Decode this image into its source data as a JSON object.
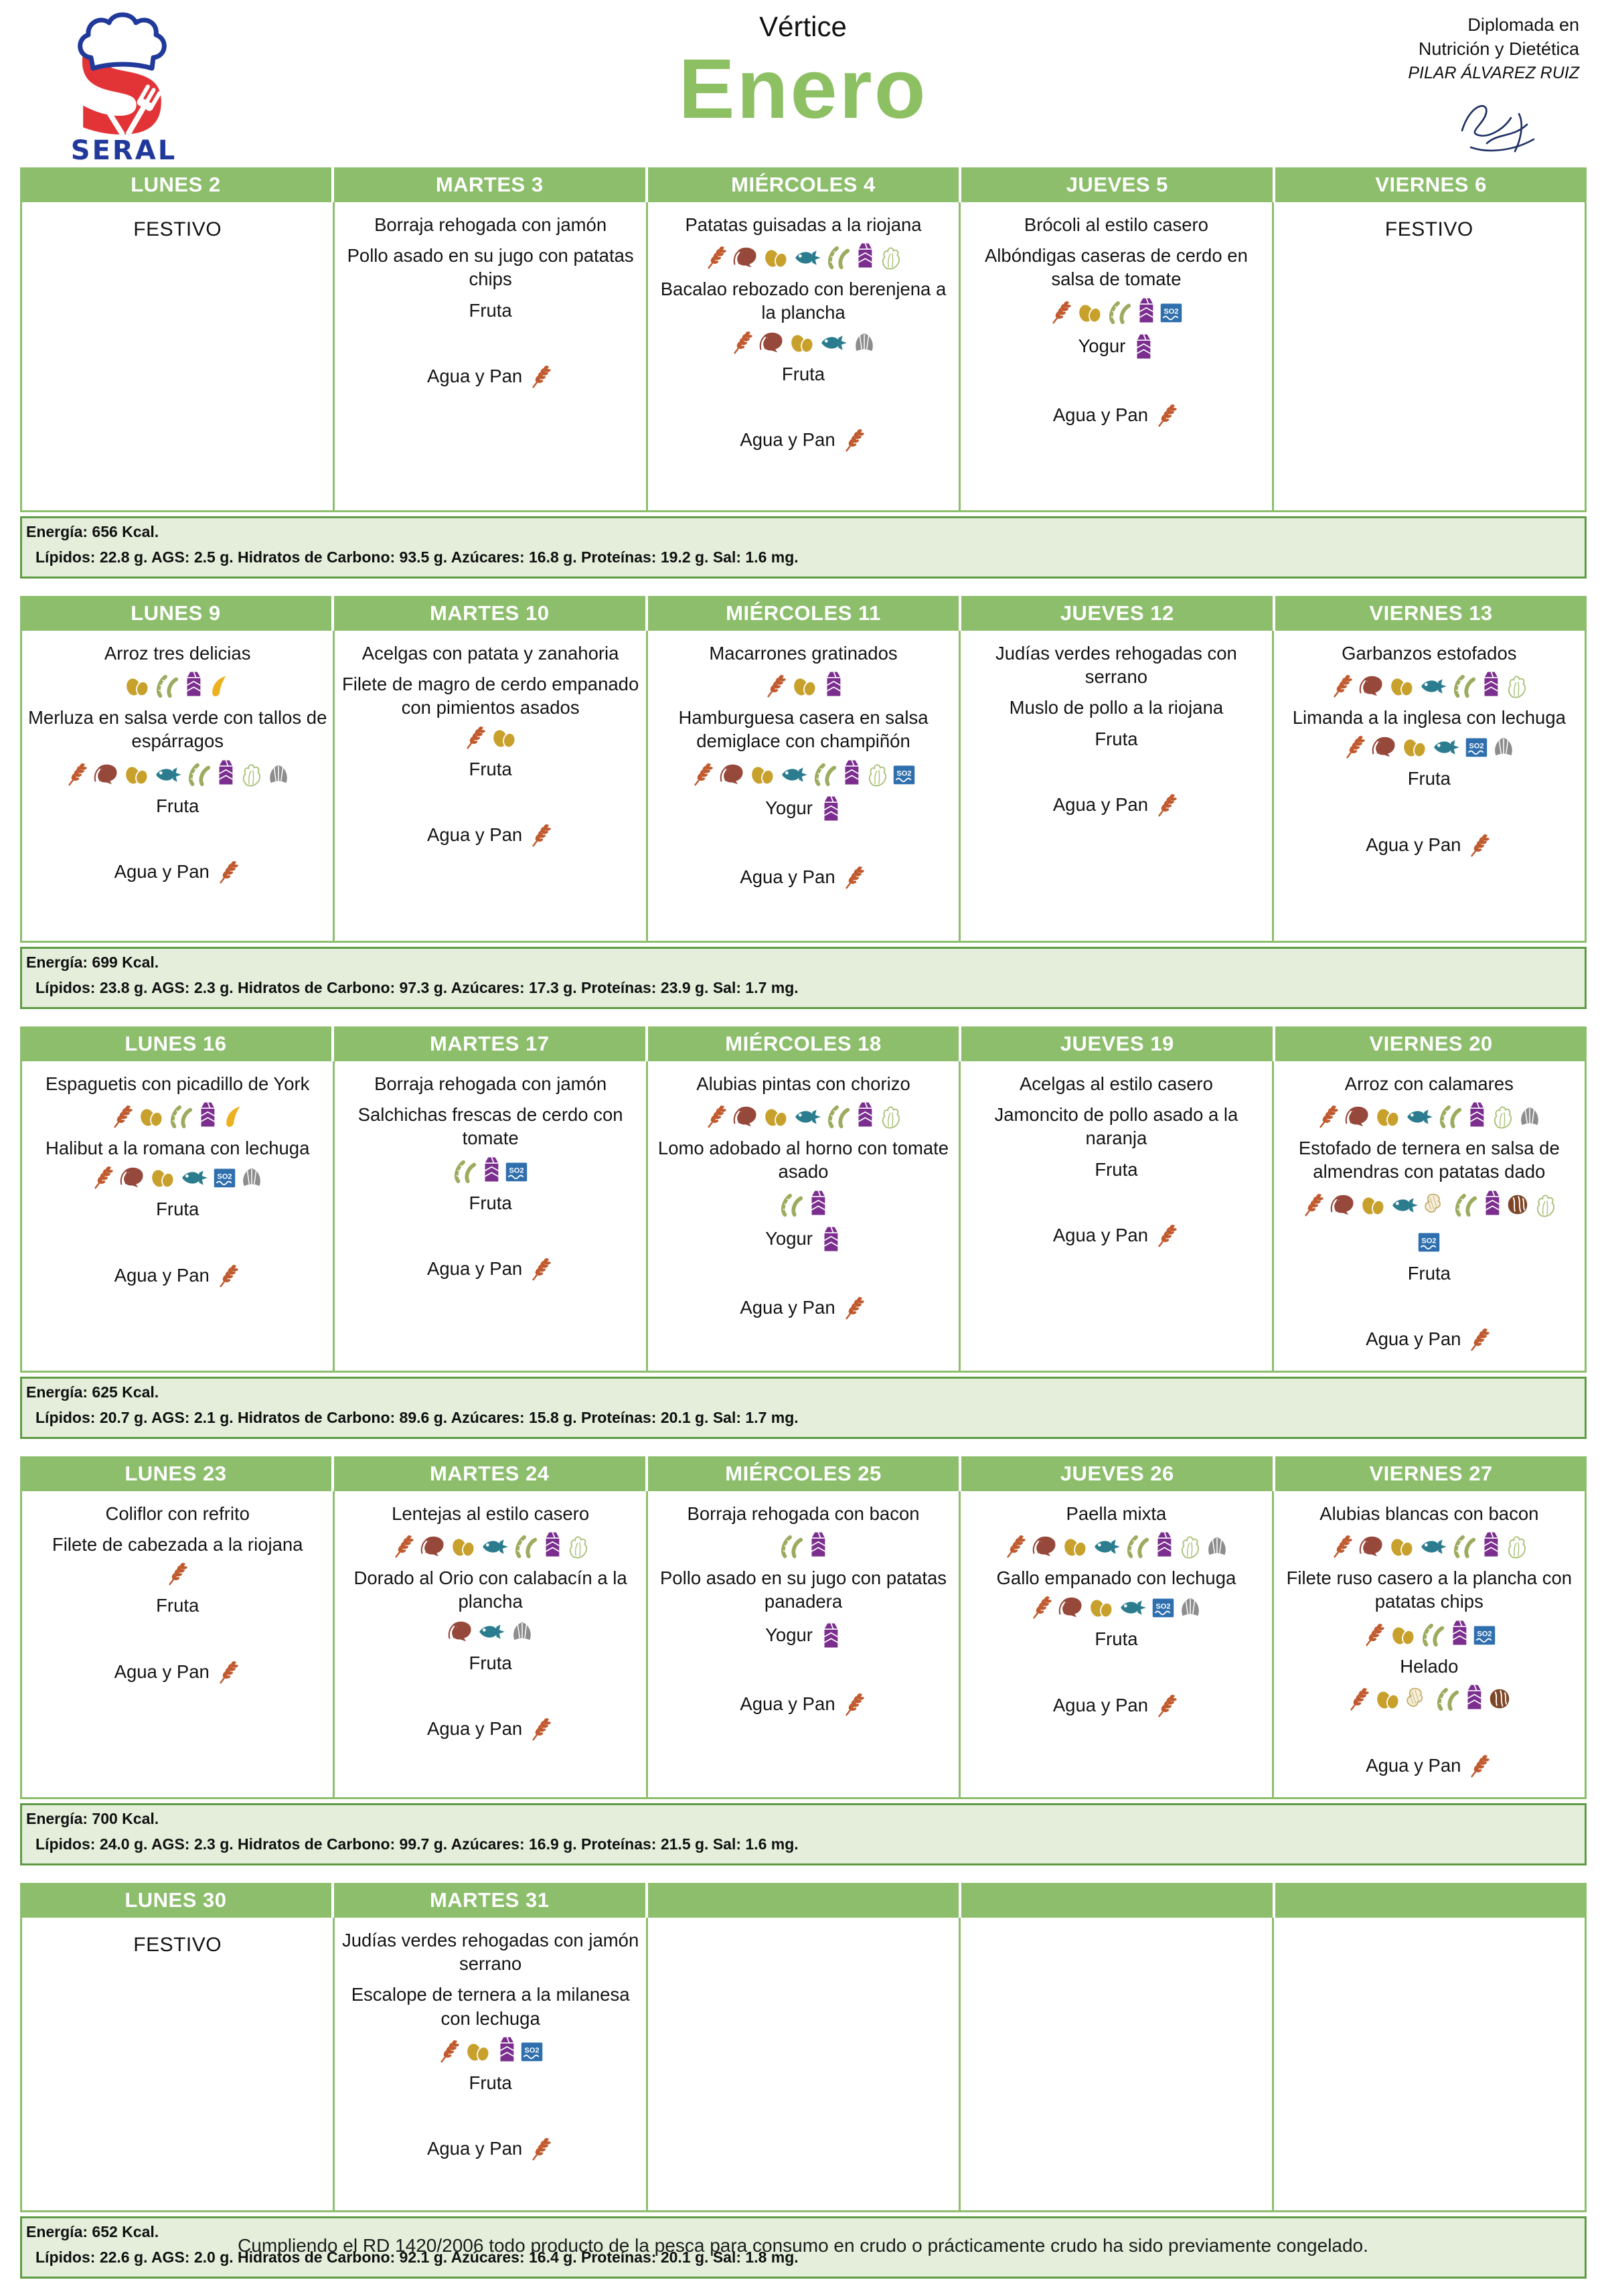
{
  "page": {
    "title_top": "Vértice",
    "month": "Enero",
    "brand": "SERAL",
    "brand_initial": "S",
    "credential_line1": "Diplomada en",
    "credential_line2": "Nutrición y Dietética",
    "credential_line3": "PILAR ÁLVAREZ RUIZ",
    "footer_note": "Cumpliendo el RD 1420/2006 todo producto de la pesca para consumo en crudo o prácticamente crudo ha sido previamente congelado."
  },
  "colors": {
    "header_green": "#8CBE6C",
    "cell_border_green": "#8CBE6C",
    "nutrition_bg": "#E4EEDB",
    "nutrition_border": "#5F9B45",
    "month_green": "#8CC063",
    "brand_red": "#E23336",
    "brand_blue": "#20399A",
    "text": "#1D1D1B"
  },
  "allergen_colors": {
    "gluten": "#C05A2E",
    "crustaceans": "#96483B",
    "eggs": "#C8A02C",
    "fish": "#2B7C8E",
    "soy": "#9CAB5E",
    "milk": "#7B2E8E",
    "celery": "#A9C178",
    "sulfites": "#2F6FAE",
    "molluscs": "#8D8D8D",
    "mustard": "#ECB11F",
    "peanuts": "#C4AD6E",
    "nuts": "#7D4627"
  },
  "weeks": [
    {
      "days": [
        {
          "label": "LUNES 2",
          "items": [
            {
              "text": "FESTIVO",
              "festivo": true
            }
          ]
        },
        {
          "label": "MARTES 3",
          "items": [
            {
              "text": "Borraja rehogada con jamón"
            },
            {
              "text": "Pollo asado en su jugo con patatas chips"
            },
            {
              "text": "Fruta"
            },
            {
              "text": "Agua y Pan",
              "icons_inline": [
                "gluten"
              ],
              "gap": true
            }
          ]
        },
        {
          "label": "MIÉRCOLES 4",
          "items": [
            {
              "text": "Patatas guisadas a la riojana",
              "icons": [
                "gluten",
                "crustaceans",
                "eggs",
                "fish",
                "soy",
                "milk",
                "celery"
              ]
            },
            {
              "text": "Bacalao rebozado con berenjena a la plancha",
              "icons": [
                "gluten",
                "crustaceans",
                "eggs",
                "fish",
                "molluscs"
              ]
            },
            {
              "text": "Fruta"
            },
            {
              "text": "Agua y Pan",
              "icons_inline": [
                "gluten"
              ],
              "gap": true
            }
          ]
        },
        {
          "label": "JUEVES 5",
          "items": [
            {
              "text": "Brócoli al estilo casero"
            },
            {
              "text": "Albóndigas caseras de cerdo en salsa de tomate",
              "icons": [
                "gluten",
                "eggs",
                "soy",
                "milk",
                "sulfites"
              ]
            },
            {
              "text": "Yogur",
              "icons_inline": [
                "milk"
              ]
            },
            {
              "text": "Agua y Pan",
              "icons_inline": [
                "gluten"
              ],
              "gap": true
            }
          ]
        },
        {
          "label": "VIERNES 6",
          "items": [
            {
              "text": "FESTIVO",
              "festivo": true
            }
          ]
        }
      ],
      "nutrition": {
        "energy": "Energía: 656 Kcal.",
        "detail": "Lípidos: 22.8 g. AGS: 2.5 g. Hidratos de Carbono: 93.5 g. Azúcares: 16.8 g. Proteínas: 19.2 g. Sal: 1.6 mg."
      }
    },
    {
      "days": [
        {
          "label": "LUNES 9",
          "items": [
            {
              "text": "Arroz tres delicias",
              "icons": [
                "eggs",
                "soy",
                "milk",
                "mustard"
              ]
            },
            {
              "text": "Merluza en salsa verde con tallos de espárragos",
              "icons": [
                "gluten",
                "crustaceans",
                "eggs",
                "fish",
                "soy",
                "milk",
                "celery",
                "molluscs"
              ]
            },
            {
              "text": "Fruta"
            },
            {
              "text": "Agua y Pan",
              "icons_inline": [
                "gluten"
              ],
              "gap": true
            }
          ]
        },
        {
          "label": "MARTES 10",
          "items": [
            {
              "text": "Acelgas con patata y zanahoria"
            },
            {
              "text": "Filete de magro de cerdo empanado con pimientos asados",
              "icons": [
                "gluten",
                "eggs"
              ]
            },
            {
              "text": "Fruta"
            },
            {
              "text": "Agua y Pan",
              "icons_inline": [
                "gluten"
              ],
              "gap": true
            }
          ]
        },
        {
          "label": "MIÉRCOLES 11",
          "items": [
            {
              "text": "Macarrones gratinados",
              "icons": [
                "gluten",
                "eggs",
                "milk"
              ]
            },
            {
              "text": "Hamburguesa casera en salsa demiglace con champiñón",
              "icons": [
                "gluten",
                "crustaceans",
                "eggs",
                "fish",
                "soy",
                "milk",
                "celery",
                "sulfites"
              ]
            },
            {
              "text": "Yogur",
              "icons_inline": [
                "milk"
              ]
            },
            {
              "text": "Agua y Pan",
              "icons_inline": [
                "gluten"
              ],
              "gap": true
            }
          ]
        },
        {
          "label": "JUEVES 12",
          "items": [
            {
              "text": "Judías verdes rehogadas con serrano"
            },
            {
              "text": "Muslo de pollo a la riojana"
            },
            {
              "text": "Fruta"
            },
            {
              "text": "Agua y Pan",
              "icons_inline": [
                "gluten"
              ],
              "gap": true
            }
          ]
        },
        {
          "label": "VIERNES 13",
          "items": [
            {
              "text": "Garbanzos estofados",
              "icons": [
                "gluten",
                "crustaceans",
                "eggs",
                "fish",
                "soy",
                "milk",
                "celery"
              ]
            },
            {
              "text": "Limanda a la inglesa con lechuga",
              "icons": [
                "gluten",
                "crustaceans",
                "eggs",
                "fish",
                "sulfites",
                "molluscs"
              ]
            },
            {
              "text": "Fruta"
            },
            {
              "text": "Agua y Pan",
              "icons_inline": [
                "gluten"
              ],
              "gap": true
            }
          ]
        }
      ],
      "nutrition": {
        "energy": "Energía: 699 Kcal.",
        "detail": "Lípidos: 23.8 g. AGS: 2.3 g. Hidratos de Carbono: 97.3 g. Azúcares: 17.3 g. Proteínas: 23.9 g. Sal: 1.7 mg."
      }
    },
    {
      "days": [
        {
          "label": "LUNES 16",
          "items": [
            {
              "text": "Espaguetis con picadillo de York",
              "icons": [
                "gluten",
                "eggs",
                "soy",
                "milk",
                "mustard"
              ]
            },
            {
              "text": "Halibut a la romana con lechuga",
              "icons": [
                "gluten",
                "crustaceans",
                "eggs",
                "fish",
                "sulfites",
                "molluscs"
              ]
            },
            {
              "text": "Fruta"
            },
            {
              "text": "Agua y Pan",
              "icons_inline": [
                "gluten"
              ],
              "gap": true
            }
          ]
        },
        {
          "label": "MARTES 17",
          "items": [
            {
              "text": "Borraja rehogada con jamón"
            },
            {
              "text": "Salchichas frescas de cerdo con tomate",
              "icons": [
                "soy",
                "milk",
                "sulfites"
              ]
            },
            {
              "text": "Fruta"
            },
            {
              "text": "Agua y Pan",
              "icons_inline": [
                "gluten"
              ],
              "gap": true
            }
          ]
        },
        {
          "label": "MIÉRCOLES 18",
          "items": [
            {
              "text": "Alubias pintas con chorizo",
              "icons": [
                "gluten",
                "crustaceans",
                "eggs",
                "fish",
                "soy",
                "milk",
                "celery"
              ]
            },
            {
              "text": "Lomo adobado al horno con tomate asado",
              "icons": [
                "soy",
                "milk"
              ]
            },
            {
              "text": "Yogur",
              "icons_inline": [
                "milk"
              ]
            },
            {
              "text": "Agua y Pan",
              "icons_inline": [
                "gluten"
              ],
              "gap": true
            }
          ]
        },
        {
          "label": "JUEVES 19",
          "items": [
            {
              "text": "Acelgas al estilo casero"
            },
            {
              "text": "Jamoncito de pollo asado a la naranja"
            },
            {
              "text": "Fruta"
            },
            {
              "text": "Agua y Pan",
              "icons_inline": [
                "gluten"
              ],
              "gap": true
            }
          ]
        },
        {
          "label": "VIERNES 20",
          "items": [
            {
              "text": "Arroz con calamares",
              "icons": [
                "gluten",
                "crustaceans",
                "eggs",
                "fish",
                "soy",
                "milk",
                "celery",
                "molluscs"
              ]
            },
            {
              "text": "Estofado de ternera en salsa de almendras con patatas dado",
              "icons": [
                "gluten",
                "crustaceans",
                "eggs",
                "fish",
                "peanuts",
                "soy",
                "milk",
                "nuts",
                "celery"
              ]
            },
            {
              "icons": [
                "sulfites"
              ]
            },
            {
              "text": "Fruta"
            },
            {
              "text": "Agua y Pan",
              "icons_inline": [
                "gluten"
              ],
              "gap": true
            }
          ]
        }
      ],
      "nutrition": {
        "energy": "Energía: 625 Kcal.",
        "detail": "Lípidos: 20.7 g. AGS: 2.1 g. Hidratos de Carbono: 89.6 g. Azúcares: 15.8 g. Proteínas: 20.1 g. Sal: 1.7 mg."
      }
    },
    {
      "days": [
        {
          "label": "LUNES 23",
          "items": [
            {
              "text": "Coliflor con refrito"
            },
            {
              "text": "Filete de cabezada a la riojana",
              "icons": [
                "gluten"
              ]
            },
            {
              "text": "Fruta"
            },
            {
              "text": "Agua y Pan",
              "icons_inline": [
                "gluten"
              ],
              "gap": true
            }
          ]
        },
        {
          "label": "MARTES 24",
          "items": [
            {
              "text": "Lentejas al estilo casero",
              "icons": [
                "gluten",
                "crustaceans",
                "eggs",
                "fish",
                "soy",
                "milk",
                "celery"
              ]
            },
            {
              "text": "Dorado al Orio con calabacín a la plancha",
              "icons": [
                "crustaceans",
                "fish",
                "molluscs"
              ]
            },
            {
              "text": "Fruta"
            },
            {
              "text": "Agua y Pan",
              "icons_inline": [
                "gluten"
              ],
              "gap": true
            }
          ]
        },
        {
          "label": "MIÉRCOLES 25",
          "items": [
            {
              "text": "Borraja rehogada con bacon",
              "icons": [
                "soy",
                "milk"
              ]
            },
            {
              "text": "Pollo asado en su jugo con patatas panadera"
            },
            {
              "text": "Yogur",
              "icons_inline": [
                "milk"
              ]
            },
            {
              "text": "Agua y Pan",
              "icons_inline": [
                "gluten"
              ],
              "gap": true
            }
          ]
        },
        {
          "label": "JUEVES 26",
          "items": [
            {
              "text": "Paella mixta",
              "icons": [
                "gluten",
                "crustaceans",
                "eggs",
                "fish",
                "soy",
                "milk",
                "celery",
                "molluscs"
              ]
            },
            {
              "text": "Gallo empanado con lechuga",
              "icons": [
                "gluten",
                "crustaceans",
                "eggs",
                "fish",
                "sulfites",
                "molluscs"
              ]
            },
            {
              "text": "Fruta"
            },
            {
              "text": "Agua y Pan",
              "icons_inline": [
                "gluten"
              ],
              "gap": true
            }
          ]
        },
        {
          "label": "VIERNES 27",
          "items": [
            {
              "text": "Alubias blancas con bacon",
              "icons": [
                "gluten",
                "crustaceans",
                "eggs",
                "fish",
                "soy",
                "milk",
                "celery"
              ]
            },
            {
              "text": "Filete ruso casero a la plancha con patatas chips",
              "icons": [
                "gluten",
                "eggs",
                "soy",
                "milk",
                "sulfites"
              ]
            },
            {
              "text": "Helado",
              "icons": [
                "gluten",
                "eggs",
                "peanuts",
                "soy",
                "milk",
                "nuts"
              ]
            },
            {
              "text": "Agua y Pan",
              "icons_inline": [
                "gluten"
              ],
              "gap": true
            }
          ]
        }
      ],
      "nutrition": {
        "energy": "Energía: 700 Kcal.",
        "detail": "Lípidos: 24.0 g. AGS: 2.3 g. Hidratos de Carbono: 99.7 g. Azúcares: 16.9 g. Proteínas: 21.5 g. Sal: 1.6 mg."
      }
    },
    {
      "days": [
        {
          "label": "LUNES 30",
          "items": [
            {
              "text": "FESTIVO",
              "festivo": true
            }
          ]
        },
        {
          "label": "MARTES 31",
          "items": [
            {
              "text": "Judías verdes rehogadas con jamón serrano"
            },
            {
              "text": "Escalope de ternera a la milanesa con lechuga",
              "icons": [
                "gluten",
                "eggs",
                "milk",
                "sulfites"
              ]
            },
            {
              "text": "Fruta"
            },
            {
              "text": "Agua y Pan",
              "icons_inline": [
                "gluten"
              ],
              "gap": true
            }
          ]
        },
        {
          "label": "",
          "items": []
        },
        {
          "label": "",
          "items": []
        },
        {
          "label": "",
          "items": []
        }
      ],
      "nutrition": {
        "energy": "Energía: 652 Kcal.",
        "detail": "Lípidos: 22.6 g. AGS: 2.0 g. Hidratos de Carbono: 92.1 g. Azúcares: 16.4 g. Proteínas: 20.1 g. Sal: 1.8 mg."
      }
    }
  ]
}
